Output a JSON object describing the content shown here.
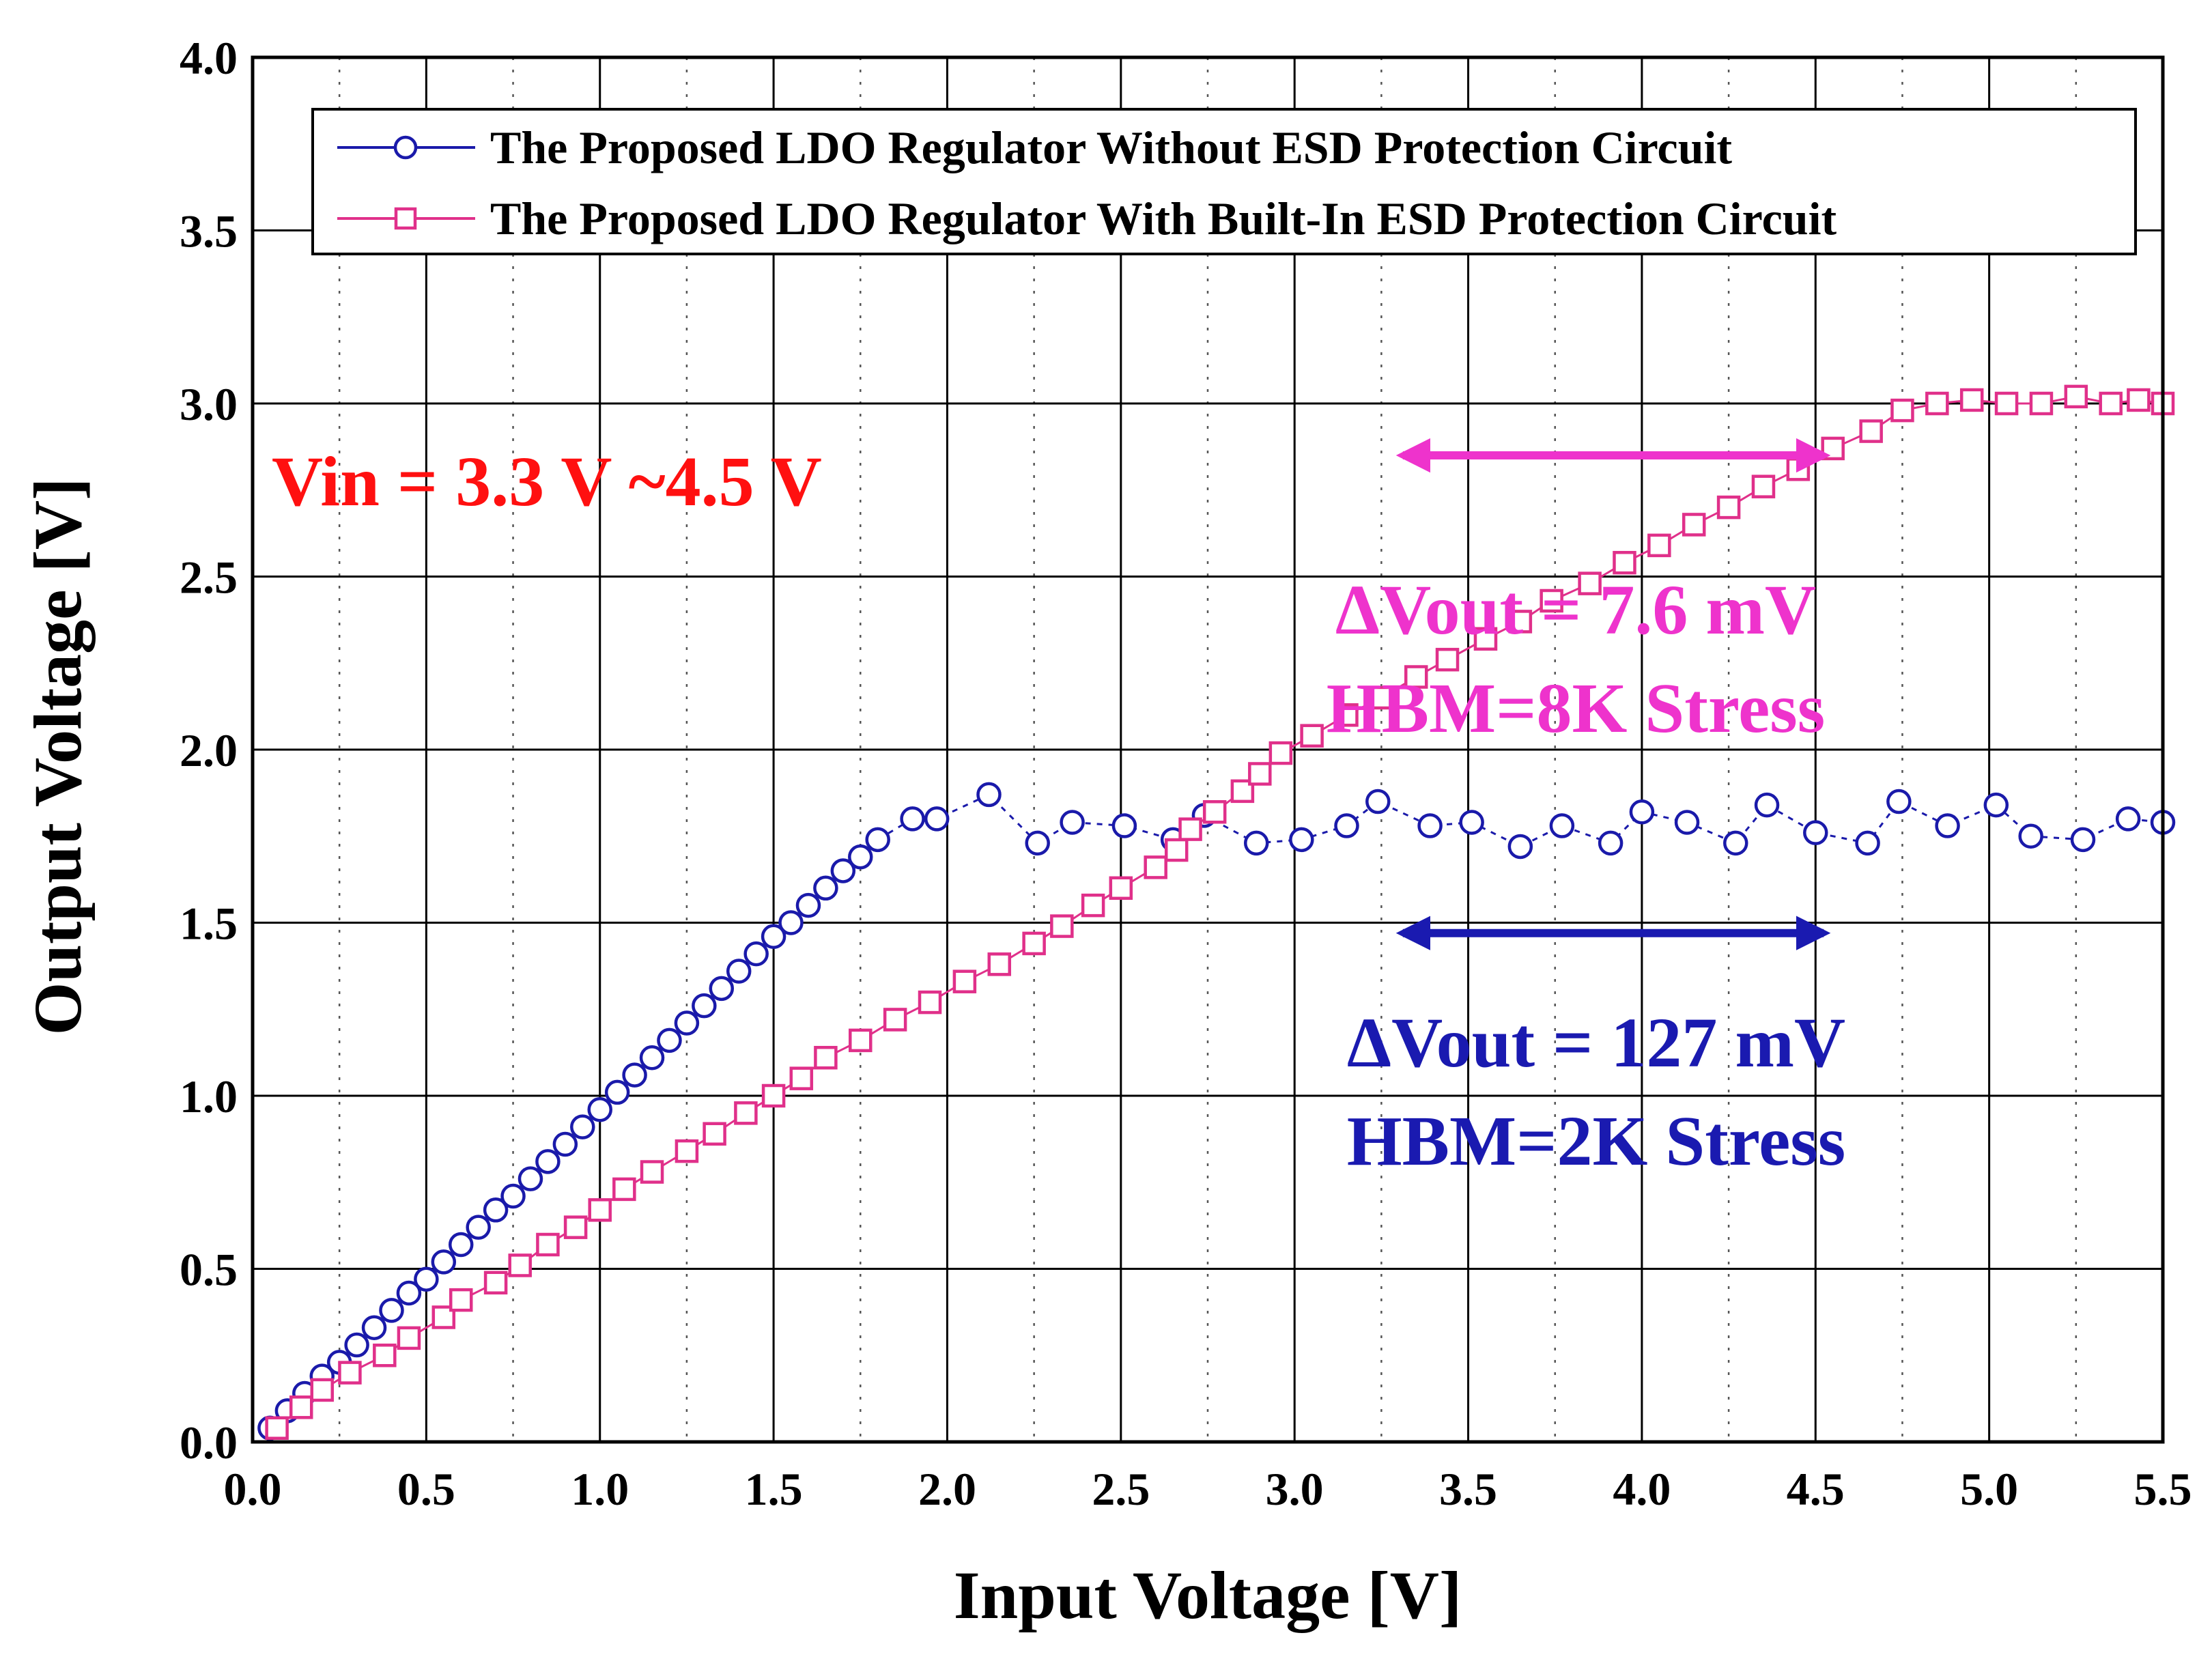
{
  "chart_data": {
    "type": "line",
    "xlabel": "Input Voltage [V]",
    "ylabel": "Output Voltage [V]",
    "xlim": [
      0,
      5.5
    ],
    "ylim": [
      0,
      4.0
    ],
    "xticks": [
      "0.0",
      "0.5",
      "1.0",
      "1.5",
      "2.0",
      "2.5",
      "3.0",
      "3.5",
      "4.0",
      "4.5",
      "5.0",
      "5.5"
    ],
    "yticks": [
      "0.0",
      "0.5",
      "1.0",
      "1.5",
      "2.0",
      "2.5",
      "3.0",
      "3.5",
      "4.0"
    ],
    "grid": true,
    "legend_position": "top",
    "series": [
      {
        "name": "The Proposed LDO Regulator Without ESD Protection Circuit",
        "color": "#1a1aaa",
        "marker": "circle",
        "line_style": "dashed",
        "x": [
          0.05,
          0.1,
          0.15,
          0.2,
          0.25,
          0.3,
          0.35,
          0.4,
          0.45,
          0.5,
          0.55,
          0.6,
          0.65,
          0.7,
          0.75,
          0.8,
          0.85,
          0.9,
          0.95,
          1.0,
          1.05,
          1.1,
          1.15,
          1.2,
          1.25,
          1.3,
          1.35,
          1.4,
          1.45,
          1.5,
          1.55,
          1.6,
          1.65,
          1.7,
          1.75,
          1.8,
          1.9,
          1.97,
          2.12,
          2.26,
          2.36,
          2.51,
          2.65,
          2.74,
          2.89,
          3.02,
          3.15,
          3.24,
          3.39,
          3.51,
          3.65,
          3.77,
          3.91,
          4.0,
          4.13,
          4.27,
          4.36,
          4.5,
          4.65,
          4.74,
          4.88,
          5.02,
          5.12,
          5.27,
          5.4,
          5.5
        ],
        "y": [
          0.04,
          0.09,
          0.14,
          0.19,
          0.23,
          0.28,
          0.33,
          0.38,
          0.43,
          0.47,
          0.52,
          0.57,
          0.62,
          0.67,
          0.71,
          0.76,
          0.81,
          0.86,
          0.91,
          0.96,
          1.01,
          1.06,
          1.11,
          1.16,
          1.21,
          1.26,
          1.31,
          1.36,
          1.41,
          1.46,
          1.5,
          1.55,
          1.6,
          1.65,
          1.69,
          1.74,
          1.8,
          1.8,
          1.87,
          1.73,
          1.79,
          1.78,
          1.74,
          1.81,
          1.73,
          1.74,
          1.78,
          1.85,
          1.78,
          1.79,
          1.72,
          1.78,
          1.73,
          1.82,
          1.79,
          1.73,
          1.84,
          1.76,
          1.73,
          1.85,
          1.78,
          1.84,
          1.75,
          1.74,
          1.8,
          1.79
        ]
      },
      {
        "name": "The Proposed LDO Regulator With Built-In ESD Protection Circuit",
        "color": "#e0308a",
        "marker": "square",
        "line_style": "solid",
        "x": [
          0.07,
          0.14,
          0.2,
          0.28,
          0.38,
          0.45,
          0.55,
          0.6,
          0.7,
          0.77,
          0.85,
          0.93,
          1.0,
          1.07,
          1.15,
          1.25,
          1.33,
          1.42,
          1.5,
          1.58,
          1.65,
          1.75,
          1.85,
          1.95,
          2.05,
          2.15,
          2.25,
          2.33,
          2.42,
          2.5,
          2.6,
          2.66,
          2.7,
          2.77,
          2.85,
          2.9,
          2.96,
          3.05,
          3.15,
          3.25,
          3.35,
          3.44,
          3.55,
          3.65,
          3.74,
          3.85,
          3.95,
          4.05,
          4.15,
          4.25,
          4.35,
          4.45,
          4.55,
          4.66,
          4.75,
          4.85,
          4.95,
          5.05,
          5.15,
          5.25,
          5.35,
          5.43,
          5.5
        ],
        "y": [
          0.04,
          0.1,
          0.15,
          0.2,
          0.25,
          0.3,
          0.36,
          0.41,
          0.46,
          0.51,
          0.57,
          0.62,
          0.67,
          0.73,
          0.78,
          0.84,
          0.89,
          0.95,
          1.0,
          1.05,
          1.11,
          1.16,
          1.22,
          1.27,
          1.33,
          1.38,
          1.44,
          1.49,
          1.55,
          1.6,
          1.66,
          1.71,
          1.77,
          1.82,
          1.88,
          1.93,
          1.99,
          2.04,
          2.1,
          2.15,
          2.21,
          2.26,
          2.32,
          2.37,
          2.43,
          2.48,
          2.54,
          2.59,
          2.65,
          2.7,
          2.76,
          2.81,
          2.87,
          2.92,
          2.98,
          3.0,
          3.01,
          3.0,
          3.0,
          3.02,
          3.0,
          3.01,
          3.0
        ]
      }
    ],
    "annotations": [
      {
        "text": "Vin = 3.3 V ~4.5 V",
        "color": "#ff1010"
      },
      {
        "text": "ΔVout = 7.6 mV",
        "color": "#ee33cc"
      },
      {
        "text": "HBM=8K Stress",
        "color": "#ee33cc"
      },
      {
        "text": "ΔVout = 127 mV",
        "color": "#1a1ab0"
      },
      {
        "text": "HBM=2K Stress",
        "color": "#1a1ab0"
      }
    ],
    "range_arrows": [
      {
        "x_start": 3.3,
        "x_end": 4.5,
        "y": 2.85,
        "color": "#ee33cc"
      },
      {
        "x_start": 3.3,
        "x_end": 4.5,
        "y": 1.47,
        "color": "#1a1ab0"
      }
    ]
  }
}
